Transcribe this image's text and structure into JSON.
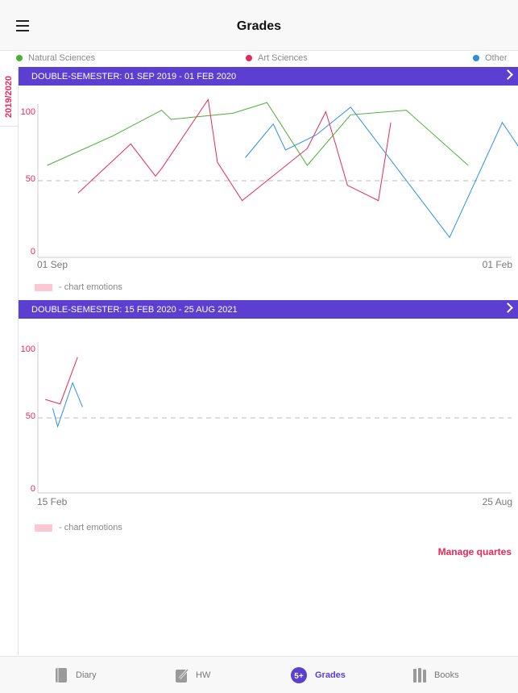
{
  "header": {
    "title": "Grades"
  },
  "legend": [
    {
      "label": "Natural Sciences",
      "color": "#4caf3a"
    },
    {
      "label": "Art Sciences",
      "color": "#e8285a"
    },
    {
      "label": "Other",
      "color": "#2b8fe0"
    }
  ],
  "year_tab": "2019/2020",
  "semesters": [
    {
      "label": "DOUBLE-SEMESTER: 01 SEP 2019 - 01 FEB 2020",
      "x_start": "01 Sep",
      "x_end": "01 Feb",
      "emotions_label": "- chart emotions"
    },
    {
      "label": "DOUBLE-SEMESTER: 15 FEB 2020 - 25 AUG 2021",
      "x_start": "15 Feb",
      "x_end": "25 Aug",
      "emotions_label": "- chart emotions"
    }
  ],
  "manage_link": "Manage quartes",
  "tabs": [
    {
      "label": "Diary",
      "icon": "diary-icon"
    },
    {
      "label": "HW",
      "icon": "homework-icon"
    },
    {
      "label": "Grades",
      "icon": "grades-icon",
      "badge": "5+"
    },
    {
      "label": "Books",
      "icon": "books-icon"
    }
  ],
  "chart_data": [
    {
      "type": "line",
      "x_range_days": [
        0,
        153
      ],
      "ylim": [
        0,
        100
      ],
      "y_ticks": [
        "100",
        "50",
        "0"
      ],
      "reference_line": 50,
      "grid": false,
      "series": [
        {
          "name": "Natural Sciences",
          "color": "#4caf3a",
          "x": [
            3,
            24,
            40,
            43,
            63,
            74,
            87,
            101,
            119,
            139
          ],
          "y": [
            60,
            79,
            96,
            90,
            94,
            101,
            60,
            93,
            96,
            60
          ]
        },
        {
          "name": "Art Sciences",
          "color": "#e8285a",
          "x": [
            13,
            30,
            38,
            40,
            55,
            58,
            66,
            87,
            93,
            96,
            100,
            110,
            114
          ],
          "y": [
            42,
            74,
            53,
            58,
            103,
            62,
            37,
            71,
            95,
            75,
            47,
            37,
            88
          ]
        },
        {
          "name": "Other",
          "color": "#2b8fe0",
          "x": [
            67,
            76,
            80,
            90,
            101,
            133,
            150,
            156
          ],
          "y": [
            65,
            87,
            70,
            80,
            98,
            13,
            88,
            70
          ]
        }
      ]
    },
    {
      "type": "line",
      "x_range_days": [
        0,
        191
      ],
      "ylim": [
        0,
        100
      ],
      "y_ticks": [
        "100",
        "50",
        "0"
      ],
      "reference_line": 50,
      "grid": false,
      "series": [
        {
          "name": "Art Sciences",
          "color": "#e8285a",
          "x": [
            3,
            9,
            16
          ],
          "y": [
            62,
            59,
            90
          ]
        },
        {
          "name": "Other",
          "color": "#2b8fe0",
          "x": [
            6,
            8,
            14,
            18
          ],
          "y": [
            56,
            44,
            73,
            57
          ]
        }
      ]
    }
  ]
}
